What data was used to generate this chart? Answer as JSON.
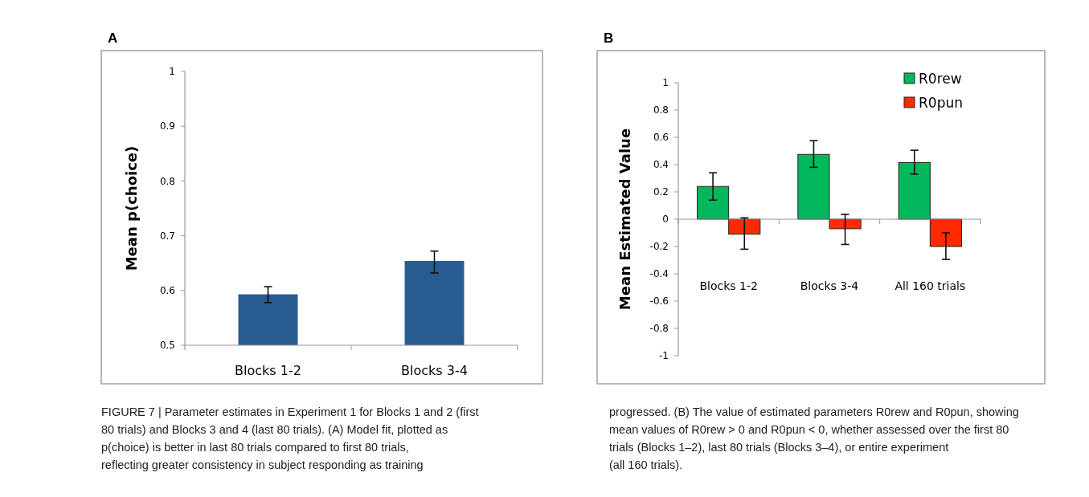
{
  "chart_data": [
    {
      "type": "bar",
      "title": "A",
      "ylabel": "Mean p(choice)",
      "categories": [
        "Blocks 1-2",
        "Blocks 3-4"
      ],
      "series": [
        {
          "color": "#285b8f",
          "values": [
            0.593,
            0.654
          ],
          "errors": [
            [
              0.578,
              0.607
            ],
            [
              0.632,
              0.672
            ]
          ]
        }
      ],
      "ylim": [
        0.5,
        1
      ],
      "yticks": [
        0.5,
        0.6,
        0.7,
        0.8,
        0.9,
        1
      ],
      "grid": false,
      "legend": false,
      "annotations": [
        "FIGURE 7 | Parameter estimates in Experiment 1 for Blocks 1 and 2 (first 80 trials) and Blocks 3 and 4 (last 80 trials). (A) Model fit, plotted as p(choice) is better in last 80 trials compared to first 80 trials, reflecting greater consistency in subject responding as training"
      ]
    },
    {
      "type": "bar",
      "title": "B",
      "ylabel": "Mean Estimated Value",
      "categories": [
        "Blocks 1-2",
        "Blocks 3-4",
        "All 160 trials"
      ],
      "series": [
        {
          "name": "R0rew",
          "color": "#00b85c",
          "values": [
            0.24,
            0.475,
            0.415
          ],
          "errors": [
            [
              0.14,
              0.34
            ],
            [
              0.38,
              0.575
            ],
            [
              0.33,
              0.505
            ]
          ]
        },
        {
          "name": "R0pun",
          "color": "#ff2a00",
          "values": [
            -0.11,
            -0.07,
            -0.2
          ],
          "errors": [
            [
              -0.22,
              0.01
            ],
            [
              -0.185,
              0.035
            ],
            [
              -0.295,
              -0.1
            ]
          ]
        }
      ],
      "ylim": [
        -1,
        1
      ],
      "yticks": [
        {
          "value": -1,
          "label": "-1"
        },
        {
          "value": -0.8,
          "label": "-0.8"
        },
        {
          "value": -0.6,
          "label": "-0.6"
        },
        {
          "value": -0.4,
          "label": "-0.4"
        },
        {
          "value": -0.2,
          "label": "-0.2"
        },
        0,
        0.2,
        0.4,
        0.6,
        0.8,
        1
      ],
      "grid": false,
      "legend": "top right",
      "annotations": [
        "progressed. (B) The value of estimated parameters R0rew and R0pun, showing mean values of R0rew > 0 and R0pun < 0, whether assessed over the first 80 trials (Blocks 1–2), last 80 trials (Blocks 3–4), or entire experiment (all 160 trials)."
      ]
    }
  ]
}
